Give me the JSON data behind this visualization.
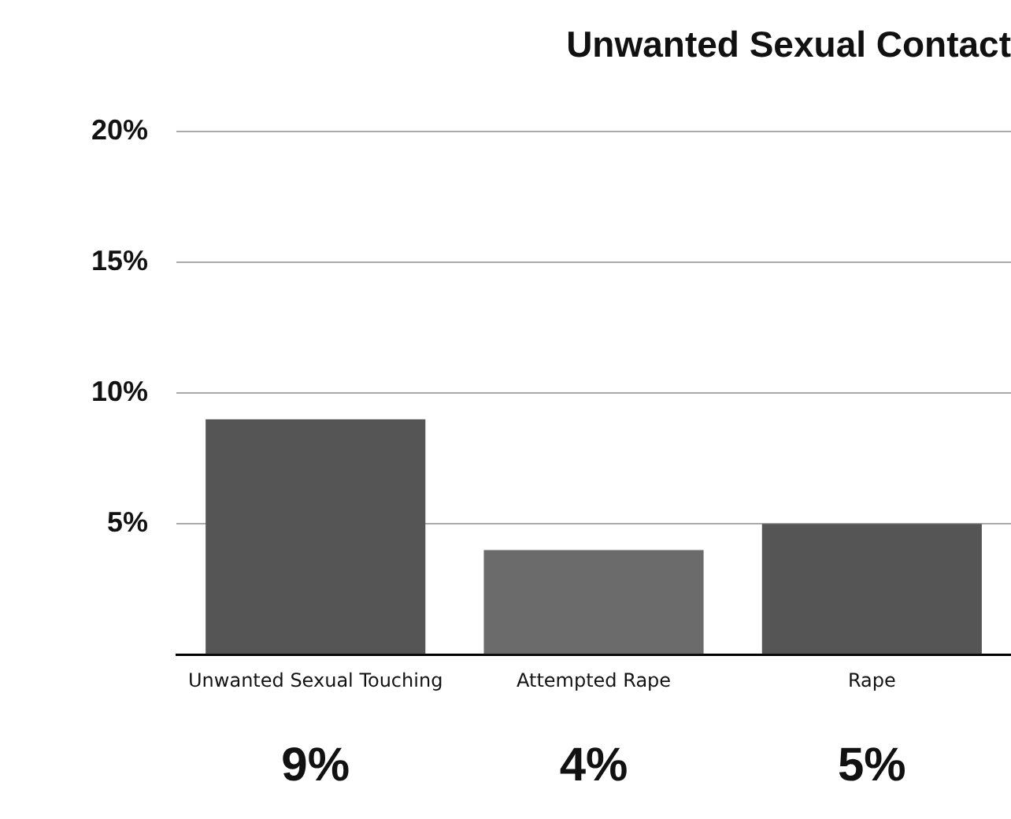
{
  "chart_data": {
    "type": "bar",
    "title": "Unwanted Sexual Contact",
    "categories": [
      "Unwanted Sexual Touching",
      "Attempted Rape",
      "Rape"
    ],
    "values": [
      9,
      4,
      5
    ],
    "colors": [
      "#555555",
      "#6b6b6b",
      "#555555"
    ],
    "value_labels": [
      "9%",
      "4%",
      "5%"
    ],
    "ylim": [
      0,
      20
    ],
    "yticks": [
      {
        "value": 0,
        "label": null
      },
      {
        "value": 5,
        "label": "5%"
      },
      {
        "value": 10,
        "label": "10%"
      },
      {
        "value": 15,
        "label": "15%"
      },
      {
        "value": 20,
        "label": "20%"
      }
    ],
    "grid": "y"
  }
}
